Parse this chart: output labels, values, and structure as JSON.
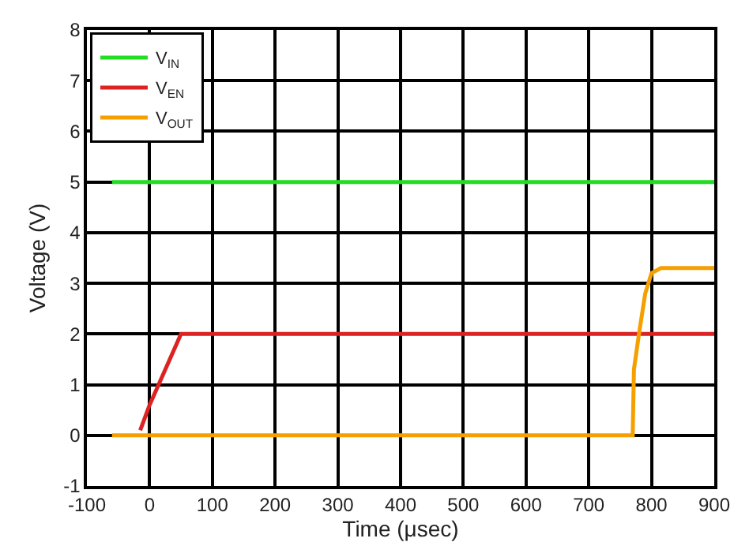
{
  "chart_data": {
    "type": "line",
    "xlabel": "Time (μsec)",
    "ylabel": "Voltage (V)",
    "xlim": [
      -100,
      900
    ],
    "xticks": [
      -100,
      0,
      100,
      200,
      300,
      400,
      500,
      600,
      700,
      800,
      900
    ],
    "ylim": [
      -1,
      8
    ],
    "yticks": [
      -1,
      0,
      1,
      2,
      3,
      4,
      5,
      6,
      7,
      8
    ],
    "grid": true,
    "legend": "top left",
    "line_style": "solid",
    "marker": "none",
    "series": [
      {
        "name": "V$_{IN}$",
        "color": "#22dd22",
        "x": [
          -60,
          900
        ],
        "values": [
          5,
          5
        ]
      },
      {
        "name": "V$_{EN}$",
        "color": "#dd2222",
        "x": [
          -15,
          0,
          50,
          900
        ],
        "values": [
          0.1,
          0.6,
          2,
          2
        ]
      },
      {
        "name": "V$_{OUT}$",
        "color": "#f5a000",
        "x": [
          -60,
          770,
          772,
          780,
          790,
          800,
          815,
          900
        ],
        "values": [
          0,
          0,
          1.3,
          2,
          2.8,
          3.2,
          3.3,
          3.3
        ]
      }
    ]
  }
}
